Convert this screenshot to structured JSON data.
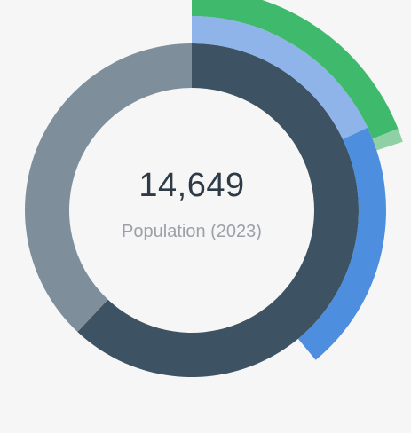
{
  "chart_data": {
    "type": "pie",
    "title": "",
    "center_value": "14,649",
    "center_caption": "Population (2023)",
    "rings": [
      {
        "name": "",
        "slices": [
          {
            "value": 62,
            "color": "#3d5363"
          },
          {
            "value": 38,
            "color": "#7e8f9b"
          }
        ]
      },
      {
        "name": "",
        "slices": [
          {
            "value": 18,
            "color": "#8fb4ea"
          },
          {
            "value": 21,
            "color": "#4d8ede"
          }
        ]
      },
      {
        "name": "",
        "slices": [
          {
            "value": 19,
            "color": "#3fba6c"
          },
          {
            "value": 1,
            "color": "#8fd0a4"
          }
        ]
      }
    ]
  }
}
